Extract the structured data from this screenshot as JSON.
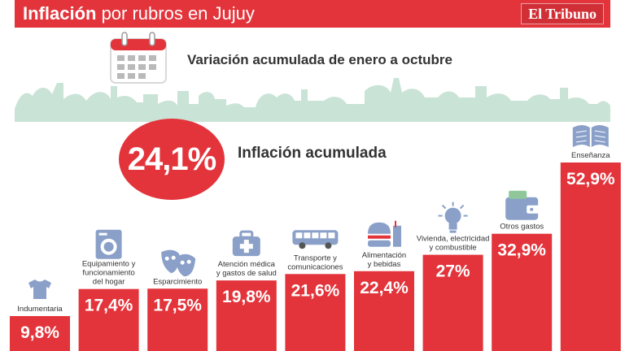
{
  "header": {
    "title_bold": "Inflación",
    "title_rest": " por rubros en Jujuy",
    "brand": "El Tribuno"
  },
  "subtitle": "Variación acumulada de enero a octubre",
  "total": {
    "value": "24,1%",
    "label": "Inflación acumulada"
  },
  "colors": {
    "accent": "#e3343b",
    "skyline": "#c9e3d6",
    "icon": "#8aa0c8"
  },
  "chart_data": {
    "type": "bar",
    "categories": [
      [
        "Indumentaria"
      ],
      [
        "Equipamiento y",
        "funcionamiento",
        "del hogar"
      ],
      [
        "Esparcimiento"
      ],
      [
        "Atención médica",
        "y gastos de salud"
      ],
      [
        "Transporte y",
        "comunicaciones"
      ],
      [
        "Alimentación",
        "y bebidas"
      ],
      [
        "Vivienda, electricidad",
        "y combustible"
      ],
      [
        "Otros gastos"
      ],
      [
        "Enseñanza"
      ]
    ],
    "values": [
      9.8,
      17.4,
      17.5,
      19.8,
      21.6,
      22.4,
      27,
      32.9,
      52.9
    ],
    "value_labels": [
      "9,8%",
      "17,4%",
      "17,5%",
      "19,8%",
      "21,6%",
      "22,4%",
      "27%",
      "32,9%",
      "52,9%"
    ],
    "icons": [
      "tshirt-icon",
      "washing-machine-icon",
      "theater-masks-icon",
      "first-aid-kit-icon",
      "bus-icon",
      "burger-icon",
      "light-bulb-icon",
      "wallet-icon",
      "book-icon"
    ]
  }
}
